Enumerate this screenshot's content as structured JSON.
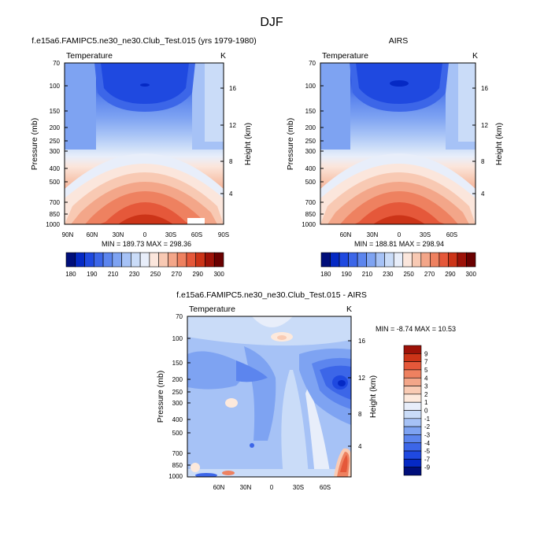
{
  "figure_title": "DJF",
  "colors": {
    "abs_scale": [
      "#000e7a",
      "#0529c4",
      "#1f49e0",
      "#3c66e8",
      "#5c85ee",
      "#7ea3f2",
      "#a6c2f6",
      "#cadcf8",
      "#e8eefa",
      "#fbe6dc",
      "#f8c9b3",
      "#f3a689",
      "#ee8160",
      "#e5583a",
      "#cc3418",
      "#9d1208",
      "#6a0000"
    ],
    "diff_scale": [
      "#000e7a",
      "#0529c4",
      "#1f49e0",
      "#3c66e8",
      "#5c85ee",
      "#7ea3f2",
      "#a6c2f6",
      "#cadcf8",
      "#e8eefa",
      "#fde9dc",
      "#f9cbb4",
      "#f3a689",
      "#ee8160",
      "#e5583a",
      "#cc3418",
      "#9d1208"
    ]
  },
  "panels": {
    "model": {
      "title": "f.e15a6.FAMIPC5.ne30_ne30.Club_Test.015 (yrs 1979-1980)",
      "variable": "Temperature",
      "units": "K",
      "ylabel": "Pressure (mb)",
      "y2label": "Height (km)",
      "stats": "MIN = 189.73  MAX = 298.36",
      "xticks": [
        "90N",
        "60N",
        "30N",
        "0",
        "30S",
        "60S",
        "90S"
      ]
    },
    "obs": {
      "title": "AIRS",
      "variable": "Temperature",
      "units": "K",
      "ylabel": "Pressure (mb)",
      "y2label": "Height (km)",
      "stats": "MIN = 188.81  MAX = 298.94",
      "xticks": [
        "60N",
        "30N",
        "0",
        "30S",
        "60S"
      ]
    },
    "diff": {
      "title": "f.e15a6.FAMIPC5.ne30_ne30.Club_Test.015 - AIRS",
      "variable": "Temperature",
      "units": "K",
      "ylabel": "Pressure (mb)",
      "y2label": "Height (km)",
      "stats": "MIN =  -8.74  MAX =  10.53",
      "xticks": [
        "60N",
        "30N",
        "0",
        "30S",
        "60S"
      ]
    }
  },
  "chart_data": [
    {
      "type": "heatmap",
      "title": "f.e15a6.FAMIPC5.ne30_ne30.Club_Test.015 (yrs 1979-1980)",
      "subtitle": "Temperature",
      "units": "K",
      "xlabel": "",
      "ylabel": "Pressure (mb)",
      "y2label": "Height (km)",
      "x": [
        90,
        60,
        30,
        0,
        -30,
        -60,
        -90
      ],
      "x_tick_labels": [
        "90N",
        "60N",
        "30N",
        "0",
        "30S",
        "60S",
        "90S"
      ],
      "y_pressure_ticks": [
        70,
        100,
        150,
        200,
        250,
        300,
        400,
        500,
        700,
        850,
        1000
      ],
      "y2_height_ticks": [
        4,
        8,
        12,
        16
      ],
      "y_log_scale": true,
      "min": 189.73,
      "max": 298.36,
      "colorbar_levels": [
        180,
        185,
        190,
        200,
        210,
        220,
        230,
        240,
        250,
        260,
        265,
        270,
        275,
        280,
        290,
        295,
        300
      ],
      "colorbar_labels": [
        "180",
        "190",
        "210",
        "230",
        "250",
        "270",
        "290",
        "300"
      ]
    },
    {
      "type": "heatmap",
      "title": "AIRS",
      "subtitle": "Temperature",
      "units": "K",
      "xlabel": "",
      "ylabel": "Pressure (mb)",
      "y2label": "Height (km)",
      "x": [
        60,
        30,
        0,
        -30,
        -60
      ],
      "x_tick_labels": [
        "60N",
        "30N",
        "0",
        "30S",
        "60S"
      ],
      "y_pressure_ticks": [
        70,
        100,
        150,
        200,
        250,
        300,
        400,
        500,
        700,
        850,
        1000
      ],
      "y2_height_ticks": [
        4,
        8,
        12,
        16
      ],
      "y_log_scale": true,
      "min": 188.81,
      "max": 298.94,
      "colorbar_levels": [
        180,
        185,
        190,
        200,
        210,
        220,
        230,
        240,
        250,
        260,
        265,
        270,
        275,
        280,
        290,
        295,
        300
      ],
      "colorbar_labels": [
        "180",
        "190",
        "210",
        "230",
        "250",
        "270",
        "290",
        "300"
      ]
    },
    {
      "type": "heatmap",
      "title": "f.e15a6.FAMIPC5.ne30_ne30.Club_Test.015 - AIRS",
      "subtitle": "Temperature",
      "units": "K",
      "xlabel": "",
      "ylabel": "Pressure (mb)",
      "y2label": "Height (km)",
      "x": [
        60,
        30,
        0,
        -30,
        -60
      ],
      "x_tick_labels": [
        "60N",
        "30N",
        "0",
        "30S",
        "60S"
      ],
      "y_pressure_ticks": [
        70,
        100,
        150,
        200,
        250,
        300,
        400,
        500,
        700,
        850,
        1000
      ],
      "y2_height_ticks": [
        4,
        8,
        12,
        16
      ],
      "y_log_scale": true,
      "min": -8.74,
      "max": 10.53,
      "colorbar_levels": [
        9,
        7,
        5,
        4,
        3,
        2,
        1,
        0,
        -1,
        -2,
        -3,
        -4,
        -5,
        -7,
        -9
      ],
      "colorbar_labels": [
        "9",
        "7",
        "5",
        "4",
        "3",
        "2",
        "1",
        "0",
        "-1",
        "-2",
        "-3",
        "-4",
        "-5",
        "-7",
        "-9"
      ]
    }
  ]
}
